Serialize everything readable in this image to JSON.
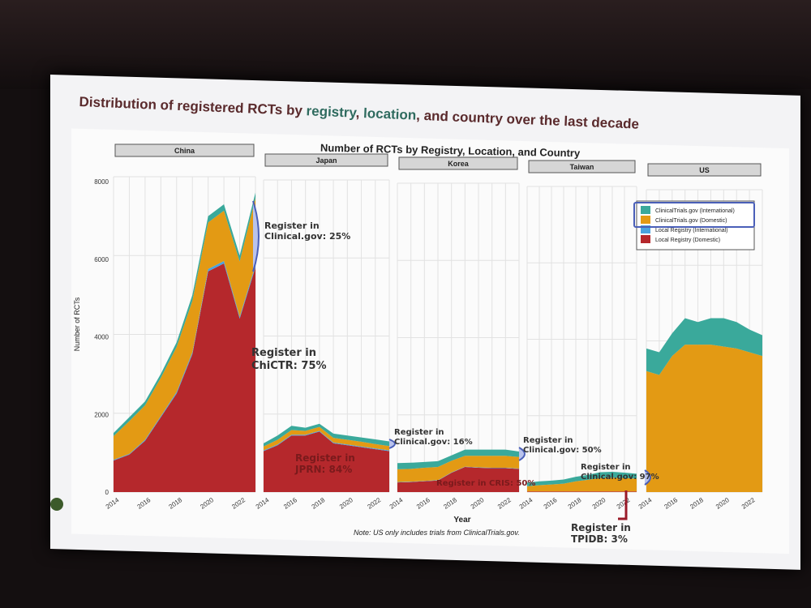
{
  "slide": {
    "title_part1": "Distribution of registered RCTs by ",
    "title_hl1": "registry",
    "title_sep1": ", ",
    "title_hl2": "location",
    "title_part2": ", and country over the last decade",
    "note": "Note: US only includes trials from ClinicalTrials.gov."
  },
  "annotations": {
    "china_ct": "Register in\nClinical.gov: 25%",
    "china_local": "Register in\nChiCTR: 75%",
    "japan_local": "Register in\nJPRN: 84%",
    "japan_ct": "Register in\nClinical.gov: 16%",
    "korea_ct": "Register in\nClinical.gov: 50%",
    "korea_local": "Register in CRIS: 50%",
    "taiwan_ct": "Register in\nClinical.gov: 97%",
    "taiwan_local": "Register in\nTPIDB: 3%"
  },
  "chart_data": {
    "type": "area",
    "title": "Number of RCTs by Registry, Location, and Country",
    "xlabel": "Year",
    "ylabel": "Number of RCTs",
    "ylim": [
      0,
      8000
    ],
    "yticks": [
      "0",
      "2000",
      "4000",
      "6000",
      "8000"
    ],
    "xticks": [
      "2014",
      "2016",
      "2018",
      "2020",
      "2022"
    ],
    "x": [
      2014,
      2015,
      2016,
      2017,
      2018,
      2019,
      2020,
      2021,
      2022,
      2023
    ],
    "legend": {
      "placement": "top-right",
      "entries": [
        "ClinicalTrials.gov (International)",
        "ClinicalTrials.gov (Domestic)",
        "Local Registry (International)",
        "Local Registry (Domestic)"
      ]
    },
    "colors": {
      "ClinicalTrials.gov (International)": "#3aa99b",
      "ClinicalTrials.gov (Domestic)": "#e39a14",
      "Local Registry (International)": "#4aa3df",
      "Local Registry (Domestic)": "#b5282c"
    },
    "panels": [
      {
        "country": "China",
        "series": {
          "Local Registry (Domestic)": [
            800,
            950,
            1300,
            1900,
            2500,
            3500,
            5600,
            5800,
            4400,
            5700
          ],
          "Local Registry (International)": [
            20,
            20,
            30,
            30,
            40,
            50,
            60,
            60,
            50,
            60
          ],
          "ClinicalTrials.gov (Domestic)": [
            600,
            830,
            870,
            970,
            1140,
            1300,
            1180,
            1280,
            1400,
            1700
          ],
          "ClinicalTrials.gov (International)": [
            80,
            100,
            100,
            100,
            120,
            150,
            160,
            160,
            150,
            140
          ]
        }
      },
      {
        "country": "Japan",
        "series": {
          "Local Registry (Domestic)": [
            1050,
            1200,
            1450,
            1450,
            1550,
            1250,
            1200,
            1150,
            1100,
            1050
          ],
          "Local Registry (International)": [
            20,
            20,
            20,
            20,
            20,
            20,
            20,
            20,
            20,
            20
          ],
          "ClinicalTrials.gov (Domestic)": [
            100,
            120,
            120,
            100,
            100,
            120,
            120,
            120,
            110,
            110
          ],
          "ClinicalTrials.gov (International)": [
            80,
            110,
            110,
            80,
            80,
            110,
            110,
            110,
            120,
            120
          ]
        }
      },
      {
        "country": "Korea",
        "series": {
          "Local Registry (Domestic)": [
            250,
            260,
            280,
            300,
            500,
            650,
            630,
            620,
            620,
            600
          ],
          "Local Registry (International)": [
            10,
            10,
            10,
            10,
            10,
            10,
            10,
            10,
            10,
            10
          ],
          "ClinicalTrials.gov (Domestic)": [
            330,
            330,
            340,
            340,
            300,
            280,
            300,
            310,
            310,
            300
          ],
          "ClinicalTrials.gov (International)": [
            160,
            160,
            150,
            150,
            140,
            160,
            160,
            160,
            160,
            140
          ]
        }
      },
      {
        "country": "Taiwan",
        "series": {
          "Local Registry (Domestic)": [
            15,
            15,
            15,
            15,
            15,
            15,
            15,
            15,
            15,
            15
          ],
          "Local Registry (International)": [
            0,
            0,
            0,
            0,
            0,
            0,
            0,
            0,
            0,
            0
          ],
          "ClinicalTrials.gov (Domestic)": [
            135,
            165,
            185,
            205,
            265,
            305,
            355,
            365,
            355,
            335
          ],
          "ClinicalTrials.gov (International)": [
            100,
            100,
            100,
            110,
            120,
            130,
            150,
            150,
            140,
            130
          ]
        }
      },
      {
        "country": "US",
        "series": {
          "Local Registry (Domestic)": [
            0,
            0,
            0,
            0,
            0,
            0,
            0,
            0,
            0,
            0
          ],
          "Local Registry (International)": [
            0,
            0,
            0,
            0,
            0,
            0,
            0,
            0,
            0,
            0
          ],
          "ClinicalTrials.gov (Domestic)": [
            3200,
            3100,
            3600,
            3900,
            3900,
            3900,
            3850,
            3800,
            3700,
            3600
          ],
          "ClinicalTrials.gov (International)": [
            600,
            600,
            600,
            700,
            600,
            700,
            750,
            700,
            600,
            550
          ]
        }
      }
    ]
  }
}
